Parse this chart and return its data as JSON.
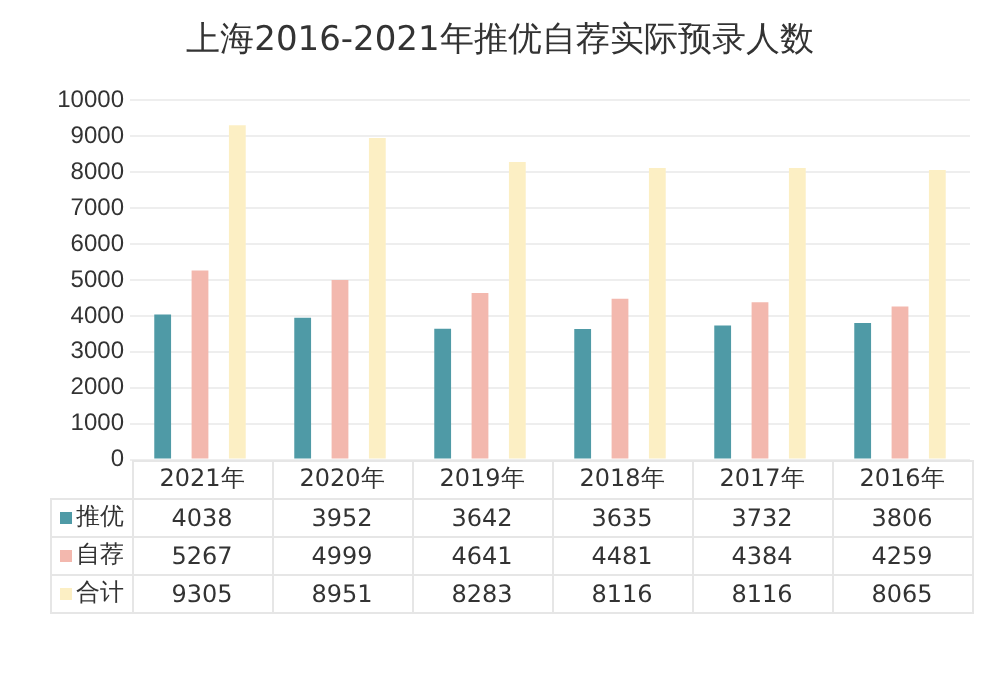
{
  "chart_data": {
    "type": "bar",
    "title": "上海2016-2021年推优自荐实际预录人数",
    "categories": [
      "2021年",
      "2020年",
      "2019年",
      "2018年",
      "2017年",
      "2016年"
    ],
    "series": [
      {
        "name": "推优",
        "color": "#4f9aa6",
        "values": [
          4038,
          3952,
          3642,
          3635,
          3732,
          3806
        ]
      },
      {
        "name": "自荐",
        "color": "#f3b8ae",
        "values": [
          5267,
          4999,
          4641,
          4481,
          4384,
          4259
        ]
      },
      {
        "name": "合计",
        "color": "#fcefc4",
        "values": [
          9305,
          8951,
          8283,
          8116,
          8116,
          8065
        ]
      }
    ],
    "ylim": [
      0,
      10000
    ],
    "yticks": [
      0,
      1000,
      2000,
      3000,
      4000,
      5000,
      6000,
      7000,
      8000,
      9000,
      10000
    ],
    "grid": "y",
    "legend": "bottom",
    "data_labels": true
  }
}
